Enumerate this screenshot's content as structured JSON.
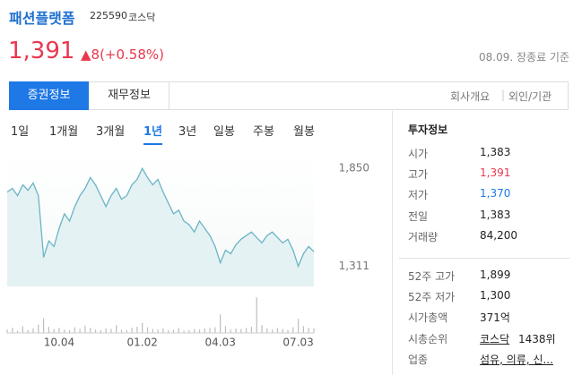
{
  "header": {
    "name": "패션플랫폼",
    "code": "225590",
    "market": "코스닥"
  },
  "price": {
    "current": "1,391",
    "change": "▲8(+0.58%)",
    "time": "08.09. 장종료 기준"
  },
  "tabs": {
    "items": [
      "증권정보",
      "재무정보"
    ],
    "links": [
      "회사개요",
      "외인/기관"
    ]
  },
  "periods": {
    "items": [
      "1일",
      "1개월",
      "3개월",
      "1년",
      "3년",
      "일봉",
      "주봉",
      "월봉"
    ],
    "active": "1년"
  },
  "chart_data": {
    "type": "line",
    "color": "#6ab4c6",
    "fill": "#e4f2f3",
    "categories": [
      null,
      null,
      null,
      null,
      null,
      null,
      null,
      null,
      null,
      null,
      "10.04",
      null,
      null,
      null,
      null,
      null,
      null,
      null,
      null,
      null,
      null,
      null,
      null,
      null,
      null,
      null,
      "01.02",
      null,
      null,
      null,
      null,
      null,
      null,
      null,
      null,
      null,
      null,
      null,
      null,
      null,
      null,
      "04.03",
      null,
      null,
      null,
      null,
      null,
      null,
      null,
      null,
      null,
      null,
      null,
      null,
      null,
      null,
      "07.03",
      null,
      null,
      null
    ],
    "values": [
      1720,
      1740,
      1700,
      1760,
      1730,
      1770,
      1700,
      1360,
      1450,
      1420,
      1520,
      1600,
      1560,
      1640,
      1700,
      1740,
      1800,
      1760,
      1700,
      1640,
      1700,
      1740,
      1680,
      1700,
      1760,
      1790,
      1850,
      1800,
      1760,
      1790,
      1720,
      1660,
      1600,
      1620,
      1560,
      1540,
      1500,
      1560,
      1520,
      1480,
      1420,
      1330,
      1400,
      1380,
      1430,
      1460,
      1480,
      1500,
      1470,
      1440,
      1480,
      1500,
      1470,
      1440,
      1460,
      1400,
      1311,
      1380,
      1420,
      1391
    ],
    "ylim": [
      1200,
      1940
    ],
    "yticks": [
      {
        "value": 1850,
        "label": "1,850"
      },
      {
        "value": 1311,
        "label": "1,311"
      }
    ],
    "volume": {
      "color": "#bdbdbd",
      "ylim": [
        0,
        700000
      ],
      "values": [
        60000,
        90000,
        40000,
        120000,
        50000,
        80000,
        150000,
        260000,
        110000,
        70000,
        90000,
        60000,
        50000,
        100000,
        70000,
        130000,
        90000,
        60000,
        50000,
        80000,
        70000,
        140000,
        60000,
        50000,
        90000,
        110000,
        180000,
        100000,
        70000,
        60000,
        80000,
        50000,
        60000,
        90000,
        40000,
        50000,
        70000,
        60000,
        80000,
        90000,
        100000,
        330000,
        120000,
        60000,
        80000,
        70000,
        90000,
        110000,
        630000,
        140000,
        80000,
        60000,
        90000,
        70000,
        50000,
        100000,
        250000,
        120000,
        90000,
        84200
      ]
    }
  },
  "investment": {
    "title": "투자정보",
    "rows": [
      [
        "시가",
        "1,383"
      ],
      [
        "고가",
        "1,391"
      ],
      [
        "저가",
        "1,370"
      ],
      [
        "전일",
        "1,383"
      ],
      [
        "거래량",
        "84,200"
      ]
    ],
    "rows2": [
      [
        "52주 고가",
        "1,899"
      ],
      [
        "52주 저가",
        "1,300"
      ],
      [
        "시가총액",
        "371억"
      ],
      [
        "시총순위",
        "코스닥",
        "1438위"
      ],
      [
        "업종",
        "섬유, 의류, 신..."
      ]
    ]
  }
}
